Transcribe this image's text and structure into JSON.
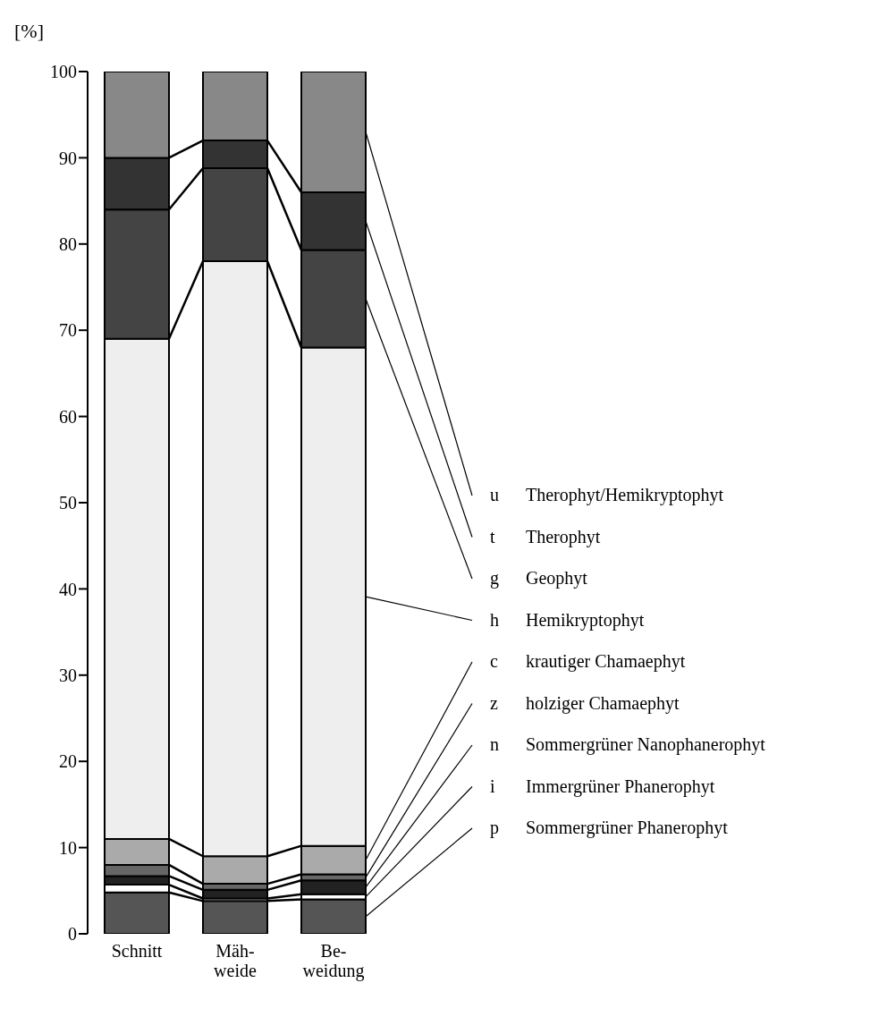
{
  "chart_data": {
    "type": "bar",
    "stacked": true,
    "ylabel": "[%]",
    "categories": [
      "Schnitt",
      "Mäh-\nweide",
      "Be-\nweidung"
    ],
    "ylim": [
      0,
      100
    ],
    "yticks": [
      0,
      10,
      20,
      30,
      40,
      50,
      60,
      70,
      80,
      90,
      100
    ],
    "grid": false,
    "series": [
      {
        "name": "p Sommergrüner Phanerophyt",
        "color": "#555555",
        "values": [
          4.8,
          3.8,
          4.0
        ]
      },
      {
        "name": "i Immergrüner Phanerophyt",
        "color": "#ffffff",
        "values": [
          0.9,
          0.3,
          0.6
        ]
      },
      {
        "name": "n Sommergrüner Nanophanerophyt",
        "color": "#222222",
        "values": [
          1.0,
          1.0,
          1.6
        ]
      },
      {
        "name": "z holziger Chamaephyt",
        "color": "#666666",
        "values": [
          1.3,
          0.7,
          0.7
        ]
      },
      {
        "name": "c krautiger Chamaephyt",
        "color": "#aaaaaa",
        "values": [
          3.0,
          3.2,
          3.3
        ]
      },
      {
        "name": "h Hemikryptophyt",
        "color": "#eeeeee",
        "values": [
          58,
          69,
          57.8
        ]
      },
      {
        "name": "g Geophyt",
        "color": "#444444",
        "values": [
          15,
          10.8,
          11.3
        ]
      },
      {
        "name": "t Therophyt",
        "color": "#333333",
        "values": [
          6,
          3.2,
          6.7
        ]
      },
      {
        "name": "u Therophyt/Hemikryptophyt",
        "color": "#888888",
        "values": [
          10,
          8,
          14
        ]
      }
    ]
  }
}
